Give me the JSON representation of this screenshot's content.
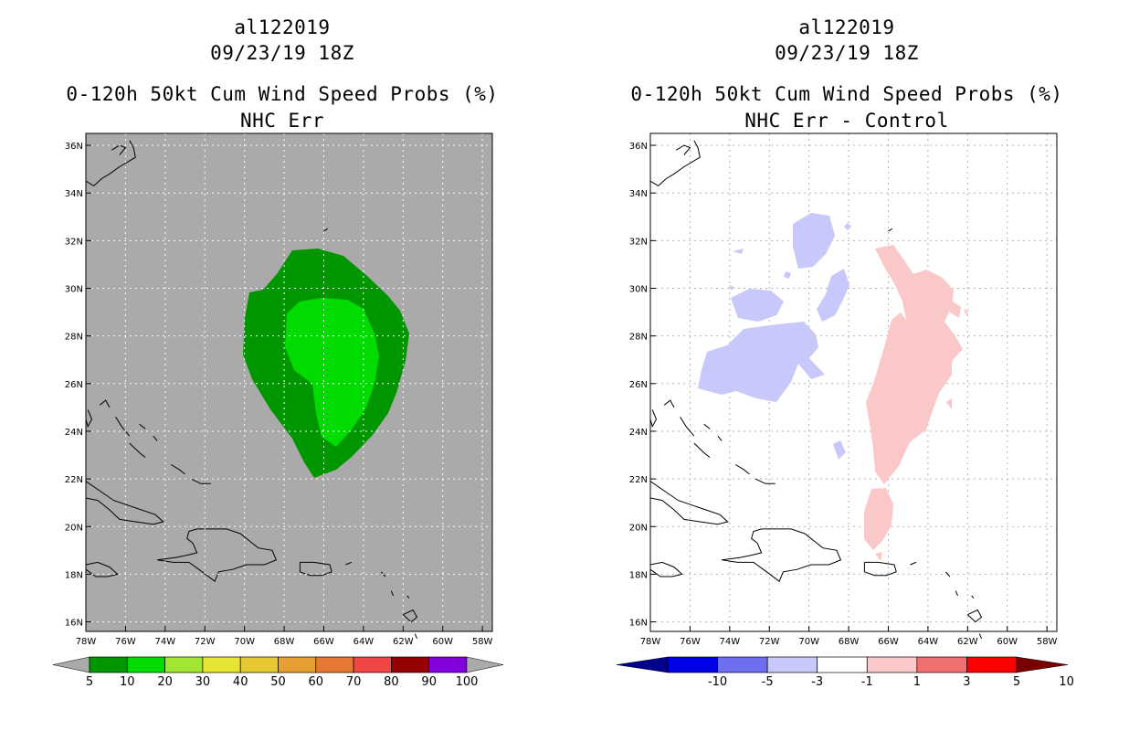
{
  "panels": [
    {
      "storm_id": "al122019",
      "datetime": "09/23/19 18Z",
      "product": "0-120h 50kt Cum Wind Speed Probs (%)",
      "subtitle": "NHC Err",
      "background_color": "#aaaaaa",
      "colorbar": {
        "colors": [
          "#009600",
          "#00dc00",
          "#a0e632",
          "#e6e632",
          "#e6c832",
          "#e6a032",
          "#e67832",
          "#f04646",
          "#960000",
          "#8200dc"
        ],
        "labels": [
          "5",
          "10",
          "20",
          "30",
          "40",
          "50",
          "60",
          "70",
          "80",
          "90",
          "100"
        ],
        "arrow_color": "#aaaaaa"
      }
    },
    {
      "storm_id": "al122019",
      "datetime": "09/23/19 18Z",
      "product": "0-120h 50kt Cum Wind Speed Probs (%)",
      "subtitle": "NHC Err - Control",
      "background_color": "#ffffff",
      "colorbar": {
        "colors": [
          "#0000e6",
          "#6e6ef0",
          "#c8c8fa",
          "#ffffff",
          "#fac8c8",
          "#f07070",
          "#ff0000"
        ],
        "labels": [
          "-10",
          "-5",
          "-3",
          "-1",
          "1",
          "3",
          "5",
          "10"
        ],
        "left_arrow_color": "#00008c",
        "right_arrow_color": "#780000"
      }
    }
  ],
  "map": {
    "lon_ticks": [
      "78W",
      "76W",
      "74W",
      "72W",
      "70W",
      "68W",
      "66W",
      "64W",
      "62W",
      "60W",
      "58W"
    ],
    "lat_ticks": [
      "36N",
      "34N",
      "32N",
      "30N",
      "28N",
      "26N",
      "24N",
      "22N",
      "20N",
      "18N",
      "16N"
    ],
    "lon_range": [
      -78,
      -57.5
    ],
    "lat_range": [
      15.6,
      36.5
    ]
  },
  "field_colors": {
    "prob_5_10": "#009600",
    "prob_10_20": "#00dc00",
    "diff_neg": "#c8c8fa",
    "diff_pos": "#fac8c8"
  }
}
